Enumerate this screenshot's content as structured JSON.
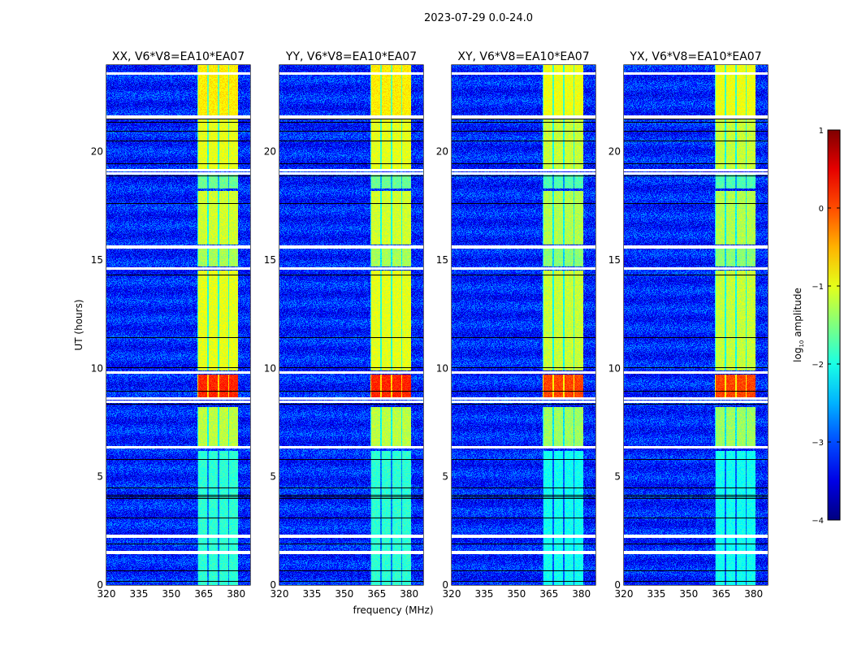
{
  "chart_data": {
    "type": "heatmap",
    "title": "2023-07-29 0.0-24.0",
    "xlabel": "frequency (MHz)",
    "ylabel": "UT (hours)",
    "xlim": [
      320,
      386.5
    ],
    "ylim": [
      0,
      24
    ],
    "xticks": [
      320,
      335,
      350,
      365,
      380
    ],
    "yticks": [
      0,
      5,
      10,
      15,
      20
    ],
    "panels": [
      {
        "title": "XX, V6*V8=EA10*EA07",
        "polarization": "XX"
      },
      {
        "title": "YY, V6*V8=EA10*EA07",
        "polarization": "YY"
      },
      {
        "title": "XY, V6*V8=EA10*EA07",
        "polarization": "XY"
      },
      {
        "title": "YX, V6*V8=EA10*EA07",
        "polarization": "YX"
      }
    ],
    "colorbar": {
      "label": "log10 amplitude",
      "label_main": "log",
      "label_sub": "10",
      "label_rest": " amplitude",
      "colormap": "jet",
      "range": [
        -4,
        1
      ],
      "ticks": [
        -4,
        -3,
        -2,
        -1,
        0,
        1
      ]
    },
    "background_level": -3.2,
    "rfi_band_mhz": [
      362,
      381
    ],
    "band_segments_hours": [
      {
        "start": 0.0,
        "end": 6.2,
        "level": -1.9
      },
      {
        "start": 6.4,
        "end": 8.2,
        "level": -1.2
      },
      {
        "start": 8.6,
        "end": 9.7,
        "level": 0.2
      },
      {
        "start": 9.9,
        "end": 14.5,
        "level": -1.0
      },
      {
        "start": 14.7,
        "end": 15.6,
        "level": -1.3
      },
      {
        "start": 15.7,
        "end": 18.2,
        "level": -1.1
      },
      {
        "start": 18.3,
        "end": 19.0,
        "level": -1.6
      },
      {
        "start": 19.1,
        "end": 21.5,
        "level": -1.0
      },
      {
        "start": 21.6,
        "end": 24.0,
        "level": -0.8
      }
    ],
    "flagged_hours": [
      1.5,
      2.25,
      6.35,
      8.45,
      8.6,
      9.8,
      14.6,
      15.6,
      19.0,
      19.15,
      21.6,
      23.6
    ]
  }
}
